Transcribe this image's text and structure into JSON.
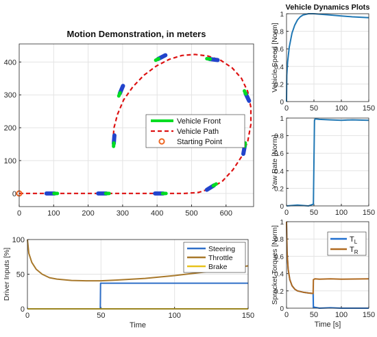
{
  "chart_data": [
    {
      "id": "motion",
      "type": "line",
      "title": "Motion Demonstration, in meters",
      "xlabel": "",
      "ylabel": "",
      "xlim": [
        0,
        680
      ],
      "ylim": [
        -40,
        455
      ],
      "xticks": [
        0,
        100,
        200,
        300,
        400,
        500,
        600
      ],
      "yticks": [
        0,
        100,
        200,
        300,
        400
      ],
      "grid": true,
      "legend_position": "inside-right",
      "legend": [
        "Vehicle Front",
        "Vehicle Path",
        "Starting Point"
      ],
      "colors": {
        "front": "#00dd22",
        "path": "#dd1111",
        "start": "#ee6622",
        "body": "#2244cc"
      },
      "series": [
        {
          "name": "Vehicle Path",
          "x": [
            0,
            100,
            200,
            300,
            400,
            480,
            520,
            555,
            590,
            620,
            645,
            663,
            672,
            672,
            663,
            645,
            618,
            585,
            548,
            510,
            472,
            435,
            398,
            362,
            330,
            303,
            285,
            275,
            272
          ],
          "y": [
            0,
            0,
            0,
            0,
            0,
            0,
            3,
            15,
            38,
            72,
            112,
            158,
            210,
            262,
            310,
            350,
            382,
            405,
            418,
            423,
            420,
            408,
            388,
            360,
            325,
            285,
            240,
            200,
            160
          ]
        },
        {
          "name": "Vehicle Front",
          "x": [
            95,
            245,
            410,
            558,
            653,
            660,
            560,
            410,
            295,
            275
          ],
          "y": [
            0,
            0,
            0,
            20,
            137,
            297,
            408,
            413,
            312,
            160
          ]
        },
        {
          "name": "Starting Point",
          "x": [
            0
          ],
          "y": [
            0
          ]
        }
      ]
    },
    {
      "id": "driver",
      "type": "line",
      "title": "",
      "xlabel": "Time",
      "ylabel": "Driver Inputs [%]",
      "xlim": [
        0,
        150
      ],
      "ylim": [
        0,
        100
      ],
      "xticks": [
        0,
        50,
        100,
        150
      ],
      "yticks": [
        0,
        50,
        100
      ],
      "grid": true,
      "legend_position": "top-right",
      "colors": {
        "Steering": "#2f6fc8",
        "Throttle": "#a8782a",
        "Brake": "#e8c21a"
      },
      "series": [
        {
          "name": "Steering",
          "x": [
            0,
            49.5,
            49.7,
            150
          ],
          "y": [
            0,
            0,
            37,
            37
          ]
        },
        {
          "name": "Throttle",
          "x": [
            0,
            1,
            3,
            6,
            10,
            15,
            20,
            30,
            40,
            50,
            60,
            80,
            100,
            120,
            140,
            150
          ],
          "y": [
            100,
            80,
            67,
            57,
            50,
            45,
            43,
            41,
            40.5,
            40.5,
            41.5,
            44,
            48,
            53,
            59,
            62
          ]
        },
        {
          "name": "Brake",
          "x": [
            0,
            150
          ],
          "y": [
            0,
            0
          ]
        }
      ]
    },
    {
      "id": "speed",
      "type": "line",
      "title": "Vehicle Dynamics Plots",
      "xlabel": "",
      "ylabel": "Vehicle Speed [Norm]",
      "xlim": [
        0,
        150
      ],
      "ylim": [
        0,
        1
      ],
      "xticks": [
        0,
        50,
        100,
        150
      ],
      "yticks": [
        0,
        0.2,
        0.4,
        0.6,
        0.8,
        1
      ],
      "grid": true,
      "colors": {
        "speed": "#1f77b4"
      },
      "series": [
        {
          "name": "",
          "x": [
            0,
            0.5,
            2,
            5,
            10,
            15,
            20,
            25,
            30,
            40,
            50,
            60,
            80,
            100,
            120,
            150
          ],
          "y": [
            0,
            0.3,
            0.45,
            0.62,
            0.78,
            0.87,
            0.93,
            0.965,
            0.985,
            1.0,
            1.0,
            0.995,
            0.985,
            0.975,
            0.965,
            0.955
          ]
        }
      ]
    },
    {
      "id": "yaw",
      "type": "line",
      "title": "",
      "xlabel": "",
      "ylabel": "Yaw Rate [Norm]",
      "xlim": [
        0,
        150
      ],
      "ylim": [
        0,
        1
      ],
      "xticks": [
        0,
        50,
        100,
        150
      ],
      "yticks": [
        0,
        0.2,
        0.4,
        0.6,
        0.8,
        1
      ],
      "grid": true,
      "colors": {
        "yaw": "#1f77b4"
      },
      "series": [
        {
          "name": "",
          "x": [
            0,
            20,
            40,
            49,
            50,
            51,
            52,
            60,
            80,
            100,
            120,
            150
          ],
          "y": [
            0,
            0.01,
            0,
            0.02,
            0.5,
            0.97,
            0.99,
            0.985,
            0.98,
            0.975,
            0.98,
            0.975
          ]
        }
      ]
    },
    {
      "id": "torque",
      "type": "line",
      "title": "",
      "xlabel": "Time [s]",
      "ylabel": "Sprocket Torques [Norm]",
      "xlim": [
        0,
        150
      ],
      "ylim": [
        0,
        1
      ],
      "xticks": [
        0,
        50,
        100,
        150
      ],
      "yticks": [
        0,
        0.2,
        0.4,
        0.6,
        0.8,
        1
      ],
      "grid": true,
      "legend_position": "top-right",
      "colors": {
        "T_L": "#1f6fd0",
        "T_R": "#b06a20"
      },
      "series": [
        {
          "name": "T",
          "sub": "L",
          "x": [
            0,
            1,
            3,
            6,
            10,
            15,
            20,
            30,
            40,
            48.5,
            49,
            52,
            60,
            80,
            100,
            150
          ],
          "y": [
            1,
            0.65,
            0.45,
            0.33,
            0.26,
            0.22,
            0.2,
            0.185,
            0.175,
            0.17,
            0.005,
            0.01,
            0.0,
            0.005,
            0.0,
            0.0
          ]
        },
        {
          "name": "T",
          "sub": "R",
          "x": [
            0,
            1,
            3,
            6,
            10,
            15,
            20,
            30,
            40,
            48.5,
            49,
            52,
            60,
            80,
            100,
            150
          ],
          "y": [
            1,
            0.65,
            0.45,
            0.33,
            0.26,
            0.22,
            0.2,
            0.185,
            0.175,
            0.17,
            0.33,
            0.34,
            0.335,
            0.34,
            0.335,
            0.34
          ]
        }
      ]
    }
  ]
}
